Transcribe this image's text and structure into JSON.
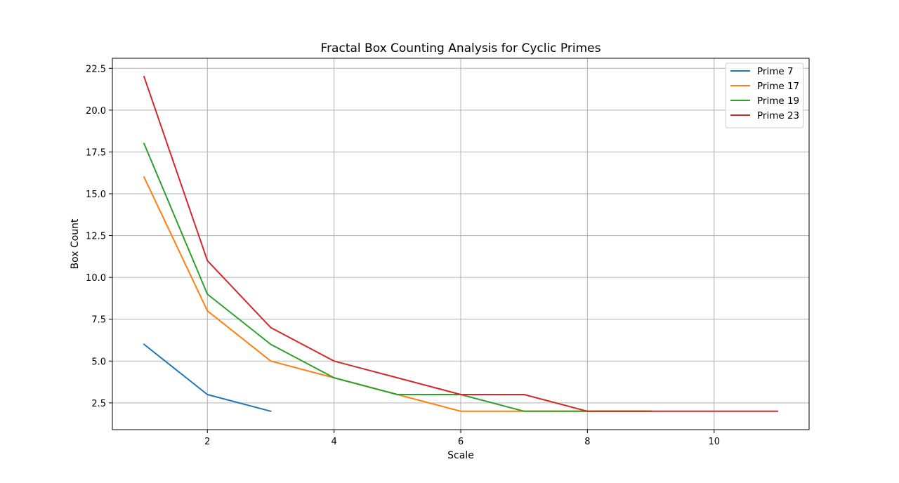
{
  "chart_data": {
    "type": "line",
    "title": "Fractal Box Counting Analysis for Cyclic Primes",
    "xlabel": "Scale",
    "ylabel": "Box Count",
    "xlim": [
      0.5,
      11.5
    ],
    "ylim": [
      0.9,
      23.1
    ],
    "xticks": [
      2,
      4,
      6,
      8,
      10
    ],
    "xtick_labels": [
      "2",
      "4",
      "6",
      "8",
      "10"
    ],
    "yticks": [
      2.5,
      5.0,
      7.5,
      10.0,
      12.5,
      15.0,
      17.5,
      20.0,
      22.5
    ],
    "ytick_labels": [
      "2.5",
      "5.0",
      "7.5",
      "10.0",
      "12.5",
      "15.0",
      "17.5",
      "20.0",
      "22.5"
    ],
    "grid": true,
    "legend_position": "top-right",
    "series": [
      {
        "name": "Prime 7",
        "color": "#1f77b4",
        "x": [
          1,
          2,
          3
        ],
        "values": [
          6,
          3,
          2
        ]
      },
      {
        "name": "Prime 17",
        "color": "#ff7f0e",
        "x": [
          1,
          2,
          3,
          4,
          5,
          6,
          7,
          8,
          9
        ],
        "values": [
          16,
          8,
          5,
          4,
          3,
          2,
          2,
          2,
          2
        ]
      },
      {
        "name": "Prime 19",
        "color": "#2ca02c",
        "x": [
          1,
          2,
          3,
          4,
          5,
          6,
          7,
          8,
          9
        ],
        "values": [
          18,
          9,
          6,
          4,
          3,
          3,
          2,
          2,
          2
        ]
      },
      {
        "name": "Prime 23",
        "color": "#d62728",
        "x": [
          1,
          2,
          3,
          4,
          5,
          6,
          7,
          8,
          9,
          10,
          11
        ],
        "values": [
          22,
          11,
          7,
          5,
          4,
          3,
          3,
          2,
          2,
          2,
          2
        ]
      }
    ]
  }
}
